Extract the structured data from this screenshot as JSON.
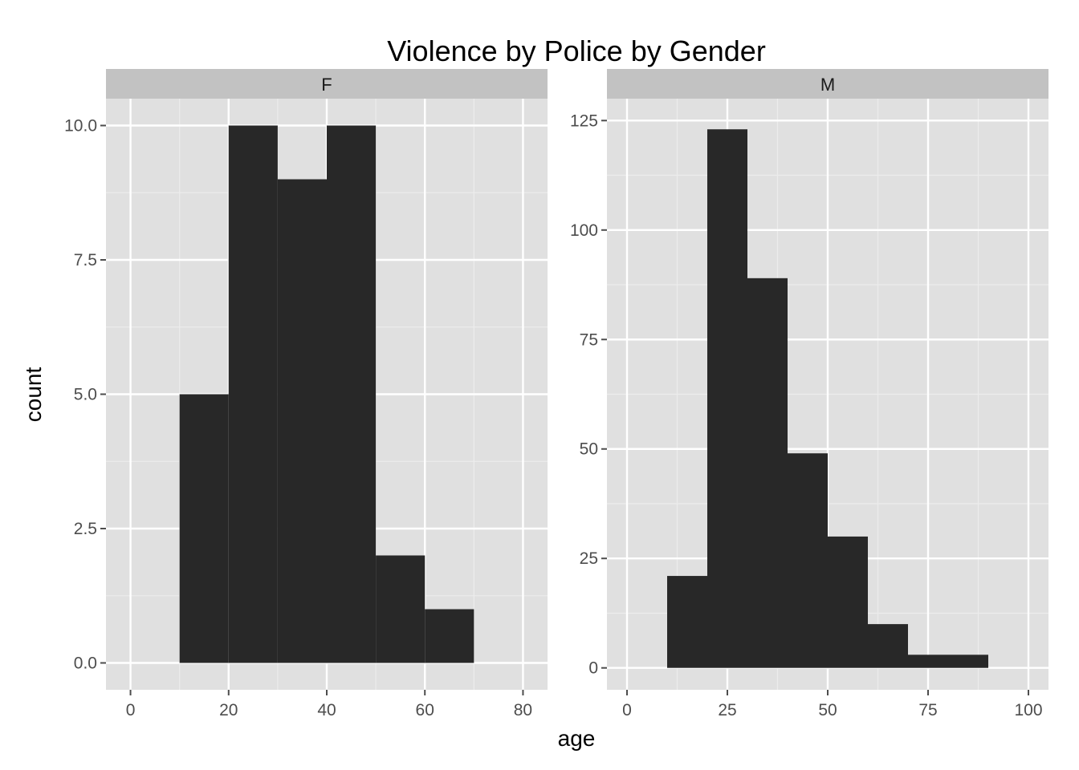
{
  "chart_data": {
    "type": "bar",
    "title": "Violence by Police by Gender",
    "xlabel": "age",
    "ylabel": "count",
    "colors": {
      "panel_bg": "#e0e0e0",
      "strip_bg": "#c2c2c2",
      "grid_major": "#ffffff",
      "grid_minor": "#ececec",
      "bar": "#282828",
      "tick": "#4d4d4d"
    },
    "panels": [
      {
        "strip": "F",
        "xlim": [
          -5,
          85
        ],
        "ylim": [
          -0.5,
          10.5
        ],
        "xticks": [
          0,
          20,
          40,
          60,
          80
        ],
        "xtick_labels": [
          "0",
          "20",
          "40",
          "60",
          "80"
        ],
        "yticks": [
          0,
          2.5,
          5,
          7.5,
          10
        ],
        "ytick_labels": [
          "0.0",
          "2.5",
          "5.0",
          "7.5",
          "10.0"
        ],
        "bins": [
          {
            "x0": 10,
            "x1": 20,
            "count": 5
          },
          {
            "x0": 20,
            "x1": 30,
            "count": 10
          },
          {
            "x0": 30,
            "x1": 40,
            "count": 9
          },
          {
            "x0": 40,
            "x1": 50,
            "count": 10
          },
          {
            "x0": 50,
            "x1": 60,
            "count": 2
          },
          {
            "x0": 60,
            "x1": 70,
            "count": 1
          }
        ]
      },
      {
        "strip": "M",
        "xlim": [
          -5,
          105
        ],
        "ylim": [
          -5,
          130
        ],
        "xticks": [
          0,
          25,
          50,
          75,
          100
        ],
        "xtick_labels": [
          "0",
          "25",
          "50",
          "75",
          "100"
        ],
        "yticks": [
          0,
          25,
          50,
          75,
          100,
          125
        ],
        "ytick_labels": [
          "0",
          "25",
          "50",
          "75",
          "100",
          "125"
        ],
        "bins": [
          {
            "x0": 10,
            "x1": 20,
            "count": 21
          },
          {
            "x0": 20,
            "x1": 30,
            "count": 123
          },
          {
            "x0": 30,
            "x1": 40,
            "count": 89
          },
          {
            "x0": 40,
            "x1": 50,
            "count": 49
          },
          {
            "x0": 50,
            "x1": 60,
            "count": 30
          },
          {
            "x0": 60,
            "x1": 70,
            "count": 10
          },
          {
            "x0": 70,
            "x1": 80,
            "count": 3
          },
          {
            "x0": 80,
            "x1": 90,
            "count": 3
          }
        ]
      }
    ]
  }
}
